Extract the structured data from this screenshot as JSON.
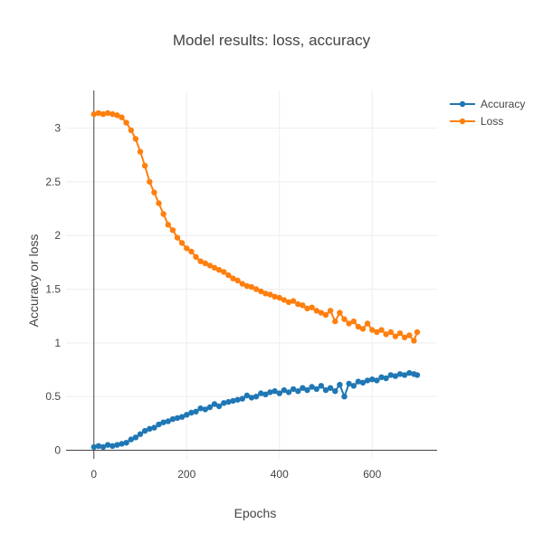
{
  "chart_data": {
    "type": "line",
    "title": "Model results: loss, accuracy",
    "xlabel": "Epochs",
    "ylabel": "Accuracy or loss",
    "xlim": [
      -60,
      740
    ],
    "ylim": [
      -0.08,
      3.35
    ],
    "x_ticks": [
      0,
      200,
      400,
      600
    ],
    "y_ticks": [
      0,
      0.5,
      1,
      1.5,
      2,
      2.5,
      3
    ],
    "x_tick_labels": [
      "0",
      "200",
      "400",
      "600"
    ],
    "y_tick_labels": [
      "0",
      "0.5",
      "1",
      "1.5",
      "2",
      "2.5",
      "3"
    ],
    "grid": true,
    "legend_position": "top-right",
    "markers": true,
    "series": [
      {
        "name": "Accuracy",
        "color": "#1f77b4",
        "x": [
          0,
          10,
          20,
          30,
          40,
          50,
          60,
          70,
          80,
          90,
          100,
          110,
          120,
          130,
          140,
          150,
          160,
          170,
          180,
          190,
          200,
          210,
          220,
          230,
          240,
          250,
          260,
          270,
          280,
          290,
          300,
          310,
          320,
          330,
          340,
          350,
          360,
          370,
          380,
          390,
          400,
          410,
          420,
          430,
          440,
          450,
          460,
          470,
          480,
          490,
          500,
          510,
          520,
          530,
          540,
          550,
          560,
          570,
          580,
          590,
          600,
          610,
          620,
          630,
          640,
          650,
          660,
          670,
          680,
          690,
          697
        ],
        "y": [
          0.03,
          0.04,
          0.03,
          0.05,
          0.04,
          0.05,
          0.06,
          0.07,
          0.1,
          0.12,
          0.15,
          0.18,
          0.2,
          0.21,
          0.24,
          0.26,
          0.27,
          0.29,
          0.3,
          0.31,
          0.33,
          0.35,
          0.36,
          0.39,
          0.38,
          0.4,
          0.43,
          0.41,
          0.44,
          0.45,
          0.46,
          0.47,
          0.48,
          0.51,
          0.49,
          0.5,
          0.53,
          0.52,
          0.54,
          0.55,
          0.53,
          0.56,
          0.54,
          0.57,
          0.55,
          0.58,
          0.56,
          0.59,
          0.57,
          0.6,
          0.56,
          0.58,
          0.55,
          0.61,
          0.5,
          0.62,
          0.6,
          0.64,
          0.63,
          0.65,
          0.66,
          0.65,
          0.68,
          0.67,
          0.7,
          0.69,
          0.71,
          0.7,
          0.72,
          0.71,
          0.7
        ]
      },
      {
        "name": "Loss",
        "color": "#ff7f0e",
        "x": [
          0,
          10,
          20,
          30,
          40,
          50,
          60,
          70,
          80,
          90,
          100,
          110,
          120,
          130,
          140,
          150,
          160,
          170,
          180,
          190,
          200,
          210,
          220,
          230,
          240,
          250,
          260,
          270,
          280,
          290,
          300,
          310,
          320,
          330,
          340,
          350,
          360,
          370,
          380,
          390,
          400,
          410,
          420,
          430,
          440,
          450,
          460,
          470,
          480,
          490,
          500,
          510,
          520,
          530,
          540,
          550,
          560,
          570,
          580,
          590,
          600,
          610,
          620,
          630,
          640,
          650,
          660,
          670,
          680,
          690,
          697
        ],
        "y": [
          3.13,
          3.14,
          3.13,
          3.14,
          3.13,
          3.12,
          3.1,
          3.05,
          2.98,
          2.9,
          2.78,
          2.65,
          2.5,
          2.4,
          2.3,
          2.2,
          2.1,
          2.05,
          1.98,
          1.93,
          1.88,
          1.85,
          1.8,
          1.76,
          1.74,
          1.72,
          1.7,
          1.68,
          1.66,
          1.63,
          1.6,
          1.58,
          1.55,
          1.53,
          1.52,
          1.5,
          1.48,
          1.46,
          1.45,
          1.43,
          1.42,
          1.4,
          1.38,
          1.39,
          1.36,
          1.35,
          1.32,
          1.33,
          1.3,
          1.28,
          1.26,
          1.3,
          1.2,
          1.28,
          1.22,
          1.18,
          1.2,
          1.15,
          1.13,
          1.18,
          1.12,
          1.1,
          1.12,
          1.08,
          1.1,
          1.06,
          1.09,
          1.05,
          1.07,
          1.02,
          1.1
        ]
      }
    ]
  }
}
